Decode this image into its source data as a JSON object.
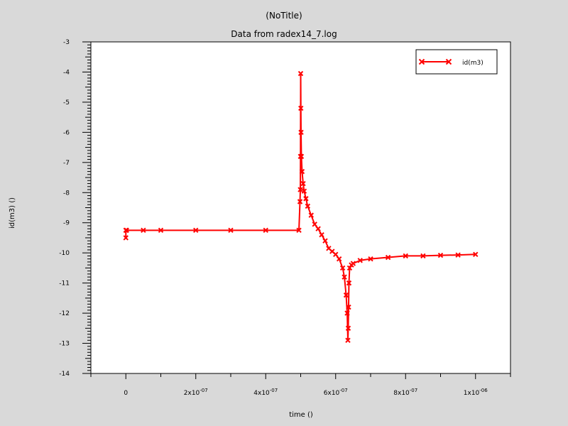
{
  "chart_data": {
    "type": "line",
    "title": "(NoTitle)",
    "subtitle": "Data from radex14_7.log",
    "xlabel": "time ()",
    "ylabel": "id(m3) ()",
    "xlim": [
      -1e-07,
      1.1e-06
    ],
    "ylim": [
      -14,
      -3
    ],
    "grid": false,
    "legend_position": "top-right",
    "x_ticks": [
      {
        "value": 0,
        "mantissa": "0",
        "exponent": ""
      },
      {
        "value": 2e-07,
        "mantissa": "2x10",
        "exponent": "-07"
      },
      {
        "value": 4e-07,
        "mantissa": "4x10",
        "exponent": "-07"
      },
      {
        "value": 6e-07,
        "mantissa": "6x10",
        "exponent": "-07"
      },
      {
        "value": 8e-07,
        "mantissa": "8x10",
        "exponent": "-07"
      },
      {
        "value": 1e-06,
        "mantissa": "1x10",
        "exponent": "-06"
      }
    ],
    "y_ticks": [
      -3,
      -4,
      -5,
      -6,
      -7,
      -8,
      -9,
      -10,
      -11,
      -12,
      -13,
      -14
    ],
    "series": [
      {
        "name": "id(m3)",
        "color": "#ff0000",
        "marker": "x",
        "x": [
          0,
          1e-10,
          2e-09,
          5e-08,
          1e-07,
          2e-07,
          3e-07,
          4e-07,
          4.95e-07,
          4.98e-07,
          4.99e-07,
          4.995e-07,
          5e-07,
          5.005e-07,
          5.01e-07,
          5.02e-07,
          5.04e-07,
          5.07e-07,
          5.1e-07,
          5.15e-07,
          5.2e-07,
          5.3e-07,
          5.4e-07,
          5.5e-07,
          5.6e-07,
          5.7e-07,
          5.8e-07,
          5.9e-07,
          6e-07,
          6.1e-07,
          6.2e-07,
          6.25e-07,
          6.3e-07,
          6.33e-07,
          6.35e-07,
          6.36e-07,
          6.37e-07,
          6.38e-07,
          6.4e-07,
          6.45e-07,
          6.5e-07,
          6.7e-07,
          7e-07,
          7.5e-07,
          8e-07,
          8.5e-07,
          9e-07,
          9.5e-07,
          1e-06
        ],
        "values": [
          -9.5,
          -9.25,
          -9.25,
          -9.25,
          -9.25,
          -9.25,
          -9.25,
          -9.25,
          -9.25,
          -8.3,
          -7.9,
          -6.8,
          -4.05,
          -5.2,
          -6.0,
          -6.8,
          -7.3,
          -7.7,
          -7.95,
          -8.2,
          -8.45,
          -8.75,
          -9.05,
          -9.2,
          -9.4,
          -9.6,
          -9.85,
          -9.95,
          -10.05,
          -10.2,
          -10.5,
          -10.8,
          -11.4,
          -12.0,
          -12.9,
          -12.5,
          -11.8,
          -11.0,
          -10.5,
          -10.4,
          -10.35,
          -10.25,
          -10.2,
          -10.15,
          -10.1,
          -10.1,
          -10.08,
          -10.07,
          -10.05
        ]
      }
    ]
  }
}
